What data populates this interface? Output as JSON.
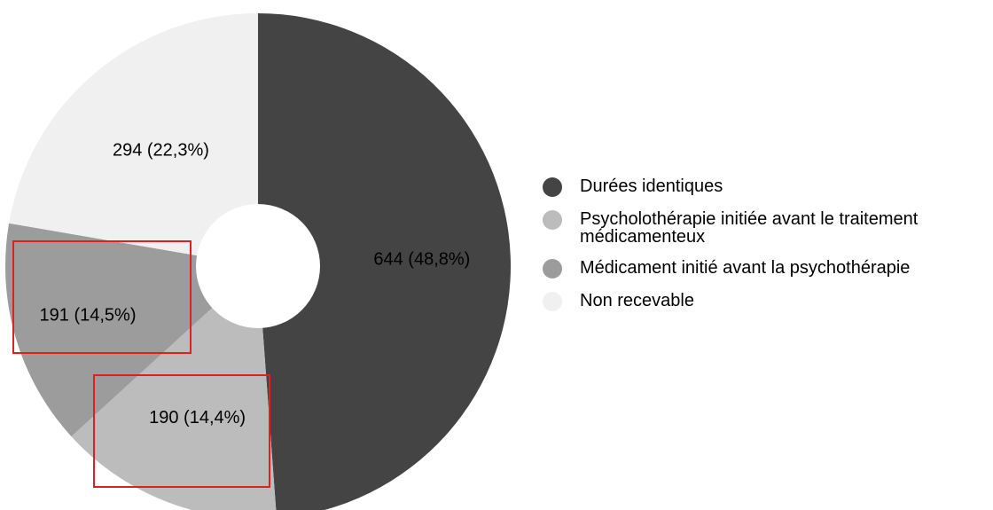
{
  "chart_data": {
    "type": "pie",
    "donut": true,
    "slices": [
      {
        "label": "Durées identiques",
        "value": 644,
        "display": "644 (48,8%)",
        "color": "#444444",
        "label_color": "#ffffff"
      },
      {
        "label": "Psycholothérapie initiée avant le traitement médicamenteux",
        "value": 190,
        "display": "190 (14,4%)",
        "color": "#bcbcbc",
        "label_color": "#000000"
      },
      {
        "label": "Médicament initié avant la psychothérapie",
        "value": 191,
        "display": "191 (14,5%)",
        "color": "#9c9c9c",
        "label_color": "#000000"
      },
      {
        "label": "Non recevable",
        "value": 294,
        "display": "294 (22,3%)",
        "color": "#f0f0f0",
        "label_color": "#000000"
      }
    ],
    "legend_position": "right",
    "highlighted_labels": [
      "191 (14,5%)",
      "190 (14,4%)"
    ],
    "highlight_color": "#e0201c"
  }
}
